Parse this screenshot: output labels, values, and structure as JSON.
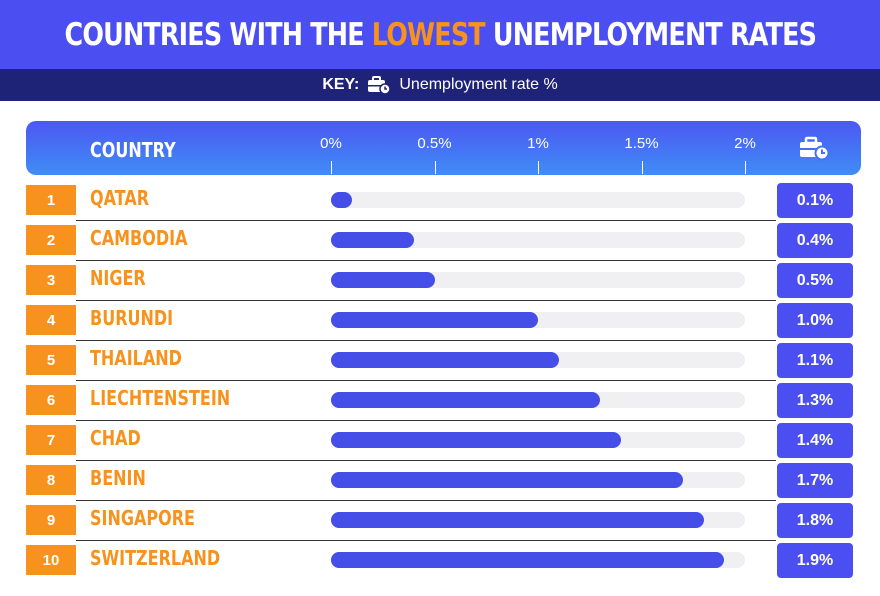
{
  "title": {
    "prefix": "Countries with the",
    "highlight": "lowest",
    "suffix": "unemployment rates"
  },
  "key": {
    "label": "KEY:",
    "icon": "briefcase-clock-icon",
    "text": "Unemployment rate %"
  },
  "colors": {
    "title_band": "#4b4ef0",
    "key_band": "#1e2377",
    "accent_orange": "#f7921e",
    "bar": "#464ee8",
    "track": "#f0f0f2"
  },
  "header": {
    "country_label": "Country",
    "icon": "briefcase-clock-icon"
  },
  "chart_data": {
    "type": "bar",
    "orientation": "horizontal",
    "xlim": [
      0,
      2
    ],
    "x_ticks": [
      "0%",
      "0.5%",
      "1%",
      "1.5%",
      "2%"
    ],
    "x_tick_values": [
      0,
      0.5,
      1,
      1.5,
      2
    ],
    "grid": false,
    "categories": [
      "Qatar",
      "Cambodia",
      "Niger",
      "Burundi",
      "Thailand",
      "Liechtenstein",
      "Chad",
      "Benin",
      "Singapore",
      "Switzerland"
    ],
    "ranks": [
      "1",
      "2",
      "3",
      "4",
      "5",
      "6",
      "7",
      "8",
      "9",
      "10"
    ],
    "values": [
      0.1,
      0.4,
      0.5,
      1.0,
      1.1,
      1.3,
      1.4,
      1.7,
      1.8,
      1.9
    ],
    "value_labels": [
      "0.1%",
      "0.4%",
      "0.5%",
      "1.0%",
      "1.1%",
      "1.3%",
      "1.4%",
      "1.7%",
      "1.8%",
      "1.9%"
    ],
    "track_max": 2
  }
}
